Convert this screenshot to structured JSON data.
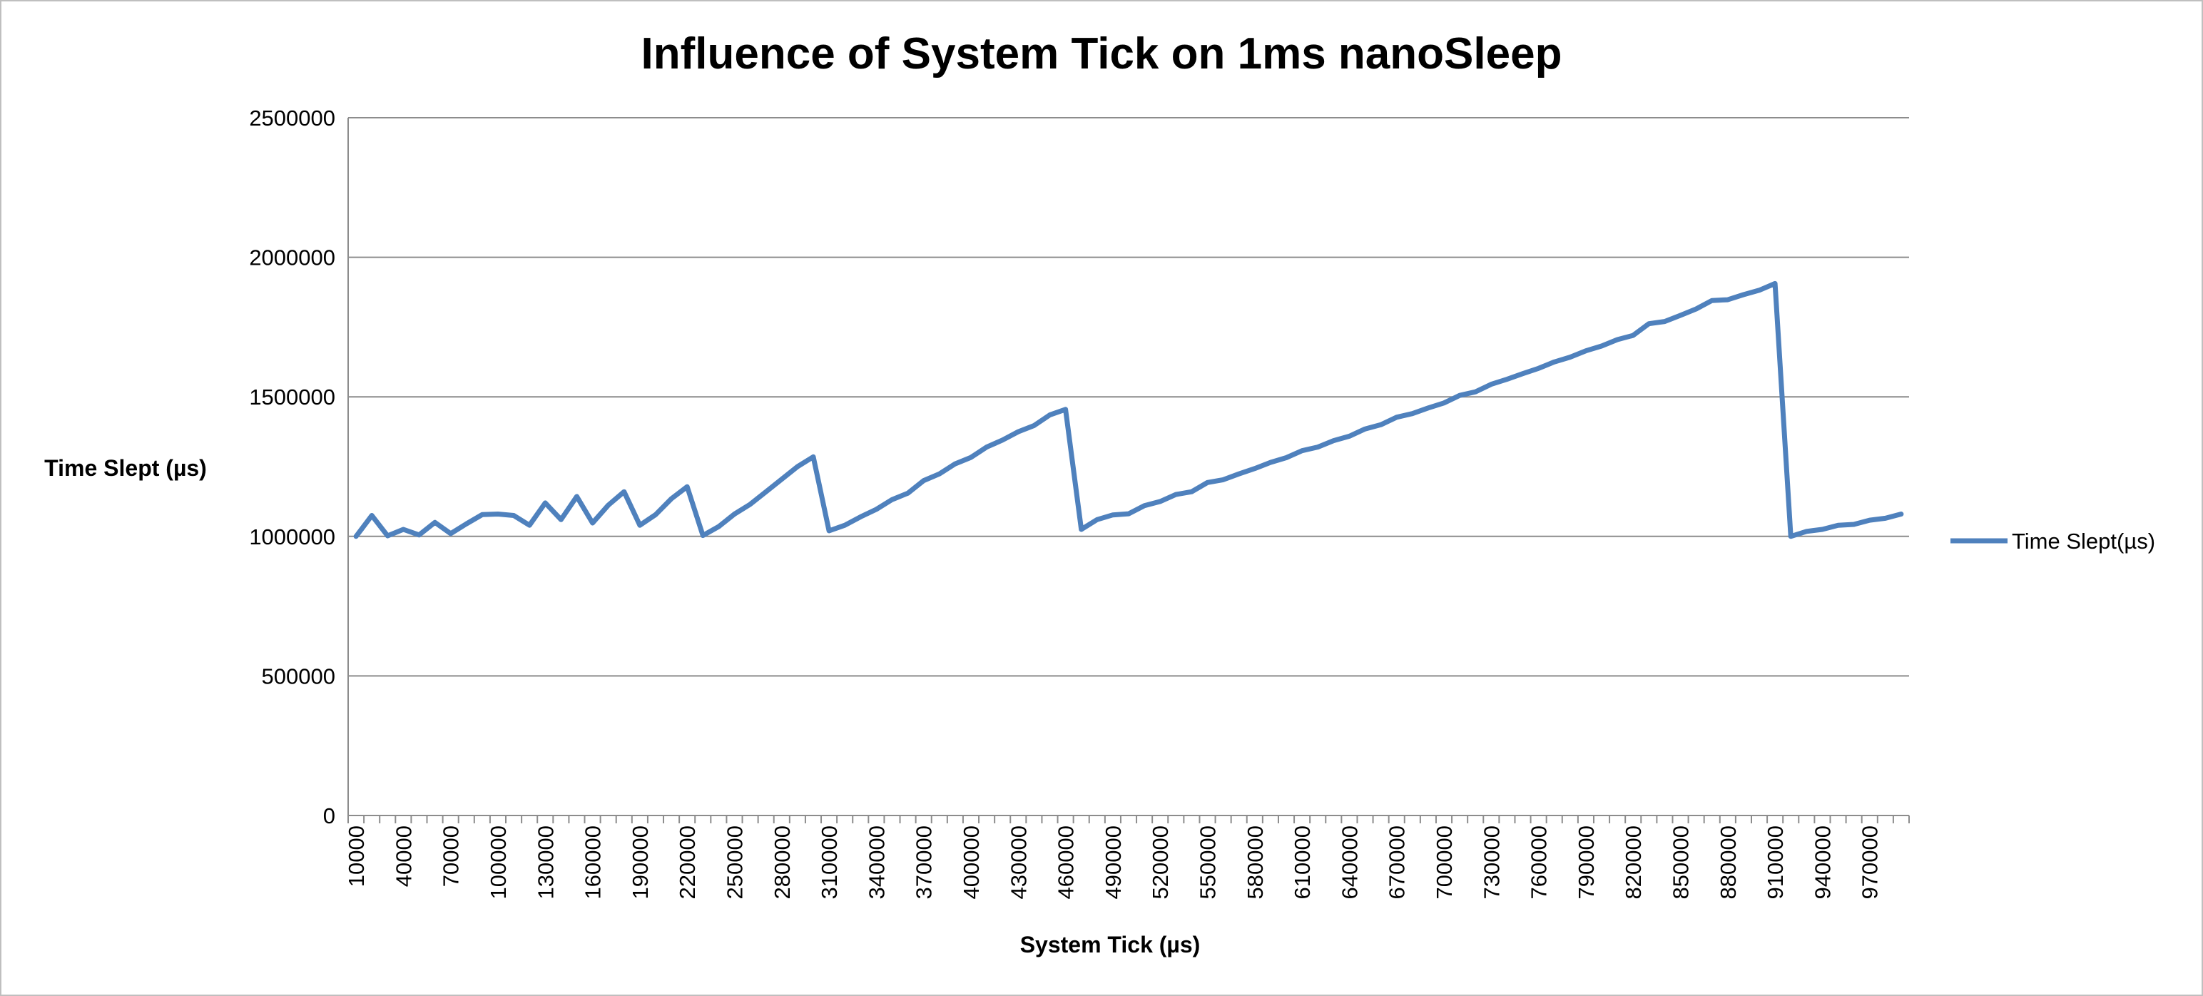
{
  "chart_data": {
    "type": "line",
    "title": "Influence of System Tick on 1ms nanoSleep",
    "xlabel": "System Tick (µs)",
    "ylabel": "Time Slept (µs)",
    "ylim": [
      0,
      2500000
    ],
    "yticks": [
      0,
      500000,
      1000000,
      1500000,
      2000000,
      2500000
    ],
    "ytick_labels": [
      "0",
      "500000",
      "1000000",
      "1500000",
      "2000000",
      "2500000"
    ],
    "grid": true,
    "legend_position": "right",
    "x_labels": [
      "10000",
      "40000",
      "70000",
      "100000",
      "130000",
      "160000",
      "190000",
      "220000",
      "250000",
      "280000",
      "310000",
      "340000",
      "370000",
      "400000",
      "430000",
      "460000",
      "490000",
      "520000",
      "550000",
      "580000",
      "610000",
      "640000",
      "670000",
      "700000",
      "730000",
      "760000",
      "790000",
      "820000",
      "850000",
      "880000",
      "910000",
      "940000",
      "970000"
    ],
    "series": [
      {
        "name": "Time Slept(µs)",
        "color": "#4f81bd",
        "x": [
          10000,
          20000,
          30000,
          40000,
          50000,
          60000,
          70000,
          80000,
          90000,
          100000,
          110000,
          120000,
          130000,
          140000,
          150000,
          160000,
          170000,
          180000,
          190000,
          200000,
          210000,
          220000,
          230000,
          240000,
          250000,
          260000,
          270000,
          280000,
          290000,
          300000,
          310000,
          320000,
          330000,
          340000,
          350000,
          360000,
          370000,
          380000,
          390000,
          400000,
          410000,
          420000,
          430000,
          440000,
          450000,
          460000,
          470000,
          480000,
          490000,
          500000,
          510000,
          520000,
          530000,
          540000,
          550000,
          560000,
          570000,
          580000,
          590000,
          600000,
          610000,
          620000,
          630000,
          640000,
          650000,
          660000,
          670000,
          680000,
          690000,
          700000,
          710000,
          720000,
          730000,
          740000,
          750000,
          760000,
          770000,
          780000,
          790000,
          800000,
          810000,
          820000,
          830000,
          840000,
          850000,
          860000,
          870000,
          880000,
          890000,
          900000,
          910000,
          920000,
          930000,
          940000,
          950000,
          960000,
          970000,
          980000,
          990000
        ],
        "values": [
          1000000,
          1075000,
          1002000,
          1025000,
          1005000,
          1050000,
          1010000,
          1045000,
          1078000,
          1080000,
          1075000,
          1040000,
          1120000,
          1060000,
          1143000,
          1048000,
          1112000,
          1160000,
          1040000,
          1078000,
          1135000,
          1178000,
          1003000,
          1035000,
          1080000,
          1115000,
          1160000,
          1205000,
          1250000,
          1285000,
          1020000,
          1040000,
          1070000,
          1097000,
          1132000,
          1155000,
          1200000,
          1224000,
          1260000,
          1283000,
          1320000,
          1345000,
          1375000,
          1397000,
          1435000,
          1455000,
          1025000,
          1060000,
          1077000,
          1081000,
          1110000,
          1125000,
          1150000,
          1160000,
          1193000,
          1203000,
          1224000,
          1243000,
          1265000,
          1282000,
          1307000,
          1320000,
          1343000,
          1359000,
          1385000,
          1400000,
          1427000,
          1440000,
          1460000,
          1478000,
          1505000,
          1518000,
          1545000,
          1563000,
          1583000,
          1602000,
          1625000,
          1642000,
          1665000,
          1682000,
          1705000,
          1720000,
          1762000,
          1770000,
          1792000,
          1815000,
          1845000,
          1848000,
          1866000,
          1882000,
          1906000,
          1000000,
          1018000,
          1025000,
          1040000,
          1043000,
          1058000,
          1065000,
          1080000
        ]
      }
    ]
  }
}
